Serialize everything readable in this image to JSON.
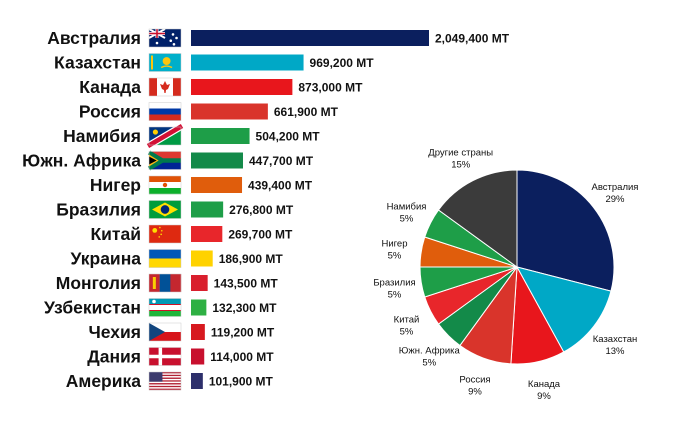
{
  "chart_data": [
    {
      "type": "bar",
      "orientation": "horizontal",
      "categories": [
        "Австралия",
        "Казахстан",
        "Канада",
        "Россия",
        "Намибия",
        "Южн. Африка",
        "Нигер",
        "Бразилия",
        "Китай",
        "Украина",
        "Монголия",
        "Узбекистан",
        "Чехия",
        "Дания",
        "Америка"
      ],
      "values": [
        2049400,
        969200,
        873000,
        661900,
        504200,
        447700,
        439400,
        276800,
        269700,
        186900,
        143500,
        132300,
        119200,
        114000,
        101900
      ],
      "value_labels": [
        "2,049,400 MT",
        "969,200 MT",
        "873,000 MT",
        "661,900 MT",
        "504,200 MT",
        "447,700 MT",
        "439,400 MT",
        "276,800 MT",
        "269,700 MT",
        "186,900 MT",
        "143,500 MT",
        "132,300 MT",
        "119,200 MT",
        "114,000 MT",
        "101,900 MT"
      ],
      "colors": [
        "#0b1f5e",
        "#00a8c6",
        "#e8161c",
        "#d9342b",
        "#1e9e48",
        "#138a49",
        "#e05d0c",
        "#1e9e48",
        "#e8262b",
        "#ffd200",
        "#d91f2d",
        "#2eb043",
        "#d7191f",
        "#c8102e",
        "#2d2f6b"
      ],
      "flags": [
        "flag-australia-icon",
        "flag-kazakhstan-icon",
        "flag-canada-icon",
        "flag-russia-icon",
        "flag-namibia-icon",
        "flag-south-africa-icon",
        "flag-niger-icon",
        "flag-brazil-icon",
        "flag-china-icon",
        "flag-ukraine-icon",
        "flag-mongolia-icon",
        "flag-uzbekistan-icon",
        "flag-czechia-icon",
        "flag-denmark-icon",
        "flag-usa-icon"
      ],
      "xlim": [
        0,
        2049400
      ]
    },
    {
      "type": "pie",
      "slices": [
        {
          "label": "Австралия",
          "value": 29,
          "value_label": "29%",
          "color": "#0b1f5e"
        },
        {
          "label": "Казахстан",
          "value": 13,
          "value_label": "13%",
          "color": "#00a8c6"
        },
        {
          "label": "Канада",
          "value": 9,
          "value_label": "9%",
          "color": "#e8161c"
        },
        {
          "label": "Россия",
          "value": 9,
          "value_label": "9%",
          "color": "#d9342b"
        },
        {
          "label": "Южн. Африка",
          "value": 5,
          "value_label": "5%",
          "color": "#138a49"
        },
        {
          "label": "Китай",
          "value": 5,
          "value_label": "5%",
          "color": "#e8262b"
        },
        {
          "label": "Бразилия",
          "value": 5,
          "value_label": "5%",
          "color": "#1e9e48"
        },
        {
          "label": "Нигер",
          "value": 5,
          "value_label": "5%",
          "color": "#e05d0c"
        },
        {
          "label": "Намибия",
          "value": 5,
          "value_label": "5%",
          "color": "#1e9e48"
        },
        {
          "label": "Другие страны",
          "value": 15,
          "value_label": "15%",
          "color": "#3b3b3b"
        }
      ]
    }
  ]
}
